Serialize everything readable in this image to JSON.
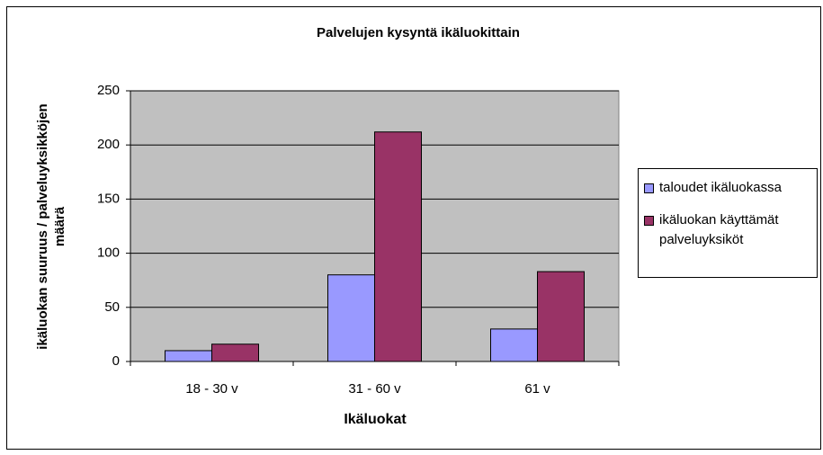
{
  "chart_data": {
    "type": "bar",
    "title": "Palvelujen kysyntä ikäluokittain",
    "x_label": "Ikäluokat",
    "y_label": "ikäluokan suuruus / palveluyksikköjen määrä",
    "categories": [
      "18 - 30 v",
      "31 - 60 v",
      "61 v"
    ],
    "series": [
      {
        "name": "taloudet ikäluokassa",
        "color": "#9999ff",
        "values": [
          10,
          80,
          30
        ]
      },
      {
        "name": "ikäluokan käyttämät palveluyksiköt",
        "color": "#993366",
        "values": [
          16,
          212,
          83
        ]
      }
    ],
    "ylim": [
      0,
      250
    ],
    "yticks": [
      0,
      50,
      100,
      150,
      200,
      250
    ],
    "grid": true,
    "legend": "right"
  }
}
